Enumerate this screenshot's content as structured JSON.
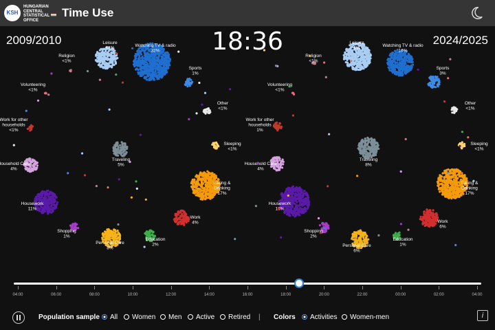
{
  "header": {
    "logo_abbr": "KSH",
    "logo_lines": [
      "HUNGARIAN",
      "CENTRAL",
      "STATISTICAL",
      "OFFICE"
    ],
    "title": "Time Use",
    "theme_icon": "moon-icon"
  },
  "years": {
    "left": "2009/2010",
    "right": "2024/2025"
  },
  "clock": "18:36",
  "chart_data": {
    "type": "scatter",
    "title": "",
    "panels": [
      {
        "name": "2009/2010",
        "activities": [
          {
            "name": "Leisure",
            "share": "<1%"
          },
          {
            "name": "Watching TV & radio",
            "share": "32%"
          },
          {
            "name": "Religion",
            "share": "<1%"
          },
          {
            "name": "Sports",
            "share": "1%"
          },
          {
            "name": "Volunteering",
            "share": "<1%"
          },
          {
            "name": "Other",
            "share": "<1%"
          },
          {
            "name": "Work for other households",
            "share": "<1%"
          },
          {
            "name": "Sleeping",
            "share": "<1%"
          },
          {
            "name": "Household Care",
            "share": "4%"
          },
          {
            "name": "Traveling",
            "share": "5%"
          },
          {
            "name": "Eating & Drinking",
            "share": "17%"
          },
          {
            "name": "Housework",
            "share": "11%"
          },
          {
            "name": "Work",
            "share": "4%"
          },
          {
            "name": "Shopping",
            "share": "1%"
          },
          {
            "name": "Education",
            "share": "2%"
          },
          {
            "name": "Personal Care",
            "share": "8%"
          }
        ]
      },
      {
        "name": "2024/2025",
        "activities": [
          {
            "name": "Leisure",
            "share": "6%"
          },
          {
            "name": "Watching TV & radio",
            "share": "16%"
          },
          {
            "name": "Religion",
            "share": "<1%"
          },
          {
            "name": "Sports",
            "share": "3%"
          },
          {
            "name": "Volunteering",
            "share": "<1%"
          },
          {
            "name": "Other",
            "share": "<1%"
          },
          {
            "name": "Work for other households",
            "share": "1%"
          },
          {
            "name": "Sleeping",
            "share": "<1%"
          },
          {
            "name": "Household Care",
            "share": "4%"
          },
          {
            "name": "Traveling",
            "share": "8%"
          },
          {
            "name": "Eating & Drinking",
            "share": "17%"
          },
          {
            "name": "Housework",
            "share": "18%"
          },
          {
            "name": "Work",
            "share": "6%"
          },
          {
            "name": "Shopping",
            "share": "2%"
          },
          {
            "name": "Education",
            "share": "1%"
          },
          {
            "name": "Personal Care",
            "share": "6%"
          }
        ]
      }
    ],
    "colors": {
      "Leisure": "#a9cdf3",
      "Watching TV & radio": "#1f6fd0",
      "Religion": "#c87e8e",
      "Sports": "#3b8ae6",
      "Volunteering": "#e0707a",
      "Other": "#e8e8e8",
      "Work for other households": "#c0392b",
      "Sleeping": "#ffd36b",
      "Household Care": "#d6a3e0",
      "Traveling": "#7d8f99",
      "Eating & Drinking": "#f59b0c",
      "Housework": "#5a1aa8",
      "Work": "#d22f2f",
      "Shopping": "#a63dc8",
      "Education": "#3dae4a",
      "Personal Care": "#f7b318"
    }
  },
  "timeline": {
    "ticks": [
      "04:00",
      "06:00",
      "08:00",
      "10:00",
      "12:00",
      "14:00",
      "16:00",
      "18:00",
      "20:00",
      "22:00",
      "00:00",
      "02:00",
      "04:00"
    ],
    "position": 0.61
  },
  "controls": {
    "pause_icon": "pause-icon",
    "population_label": "Population sample",
    "population_options": [
      "All",
      "Women",
      "Men",
      "Active",
      "Retired"
    ],
    "population_selected": "All",
    "separator": "|",
    "colors_label": "Colors",
    "color_options": [
      "Activities",
      "Women-men"
    ],
    "color_selected": "Activities",
    "info_icon": "info-icon",
    "info_glyph": "i"
  }
}
